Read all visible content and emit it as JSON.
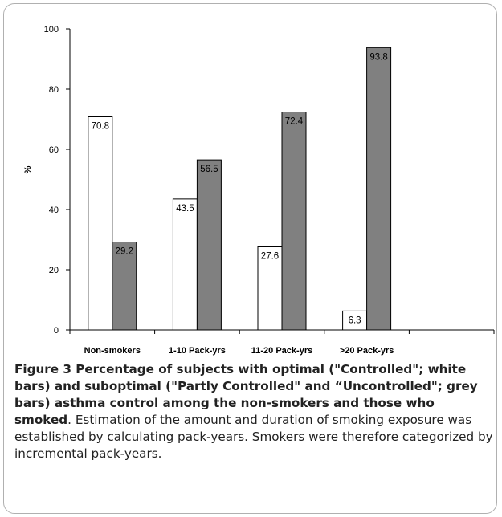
{
  "figure": {
    "caption_title": "Figure 3 Percentage of subjects with optimal (\"Controlled\"; white bars) and suboptimal (\"Partly Controlled\" and “Uncontrolled\"; grey bars) asthma control among the non-smokers and those who smoked",
    "caption_body": ". Estimation of the amount and duration of smoking exposure was established by calculating pack-years. Smokers were therefore categorized by incremental pack-years."
  },
  "chart_data": {
    "type": "bar",
    "categories": [
      "Non-smokers",
      "1-10 Pack-yrs",
      "11-20 Pack-yrs",
      ">20 Pack-yrs"
    ],
    "series": [
      {
        "values": [
          70.8,
          43.5,
          27.6,
          6.3
        ],
        "color": "#ffffff"
      },
      {
        "values": [
          29.2,
          56.5,
          72.4,
          93.8
        ],
        "color": "#808080"
      }
    ],
    "value_labels": [
      [
        "70.8",
        "43.5",
        "27.6",
        "6.3"
      ],
      [
        "29.2",
        "56.5",
        "72.4",
        "93.8"
      ]
    ],
    "yticks": [
      "0",
      "20",
      "40",
      "60",
      "80",
      "100"
    ],
    "ylim": [
      0,
      100
    ],
    "ylabel": "%",
    "xlabel": "",
    "grid": false,
    "legend": "none"
  }
}
